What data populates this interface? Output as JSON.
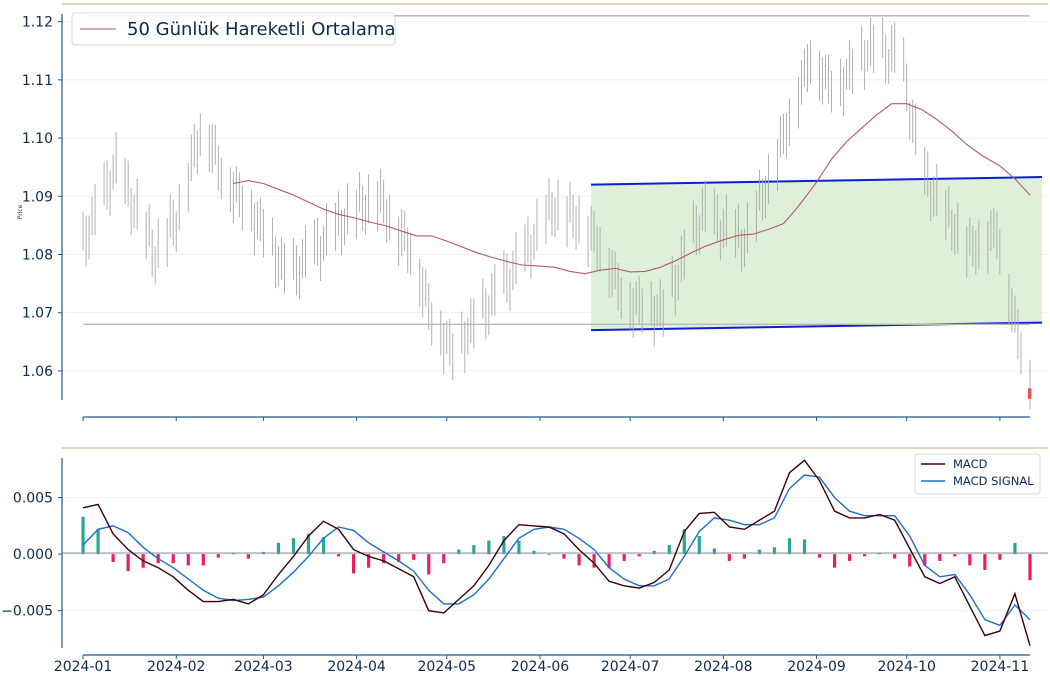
{
  "chart_data": [
    {
      "type": "candlestick",
      "ylabel": "Price",
      "ylim": [
        1.055,
        1.122
      ],
      "yticks": [
        1.06,
        1.07,
        1.08,
        1.09,
        1.1,
        1.11,
        1.12
      ],
      "ytick_labels": [
        "1.06",
        "1.07",
        "1.08",
        "1.09",
        "1.10",
        "1.11",
        "1.12"
      ],
      "xlim": [
        "2023-12-25",
        "2024-11-17"
      ],
      "legend": {
        "location": "top-left",
        "entries": [
          "50 Günlük Hareketli Ortalama"
        ]
      },
      "series": [
        {
          "name": "50 Günlük Hareketli Ortalama",
          "color": "#b05a6e",
          "x": [
            "2024-02-20",
            "2024-02-25",
            "2024-03-01",
            "2024-03-06",
            "2024-03-11",
            "2024-03-16",
            "2024-03-21",
            "2024-03-26",
            "2024-04-01",
            "2024-04-06",
            "2024-04-11",
            "2024-04-16",
            "2024-04-21",
            "2024-04-26",
            "2024-05-01",
            "2024-05-06",
            "2024-05-11",
            "2024-05-16",
            "2024-05-21",
            "2024-05-26",
            "2024-06-01",
            "2024-06-06",
            "2024-06-11",
            "2024-06-16",
            "2024-06-21",
            "2024-06-26",
            "2024-07-01",
            "2024-07-06",
            "2024-07-11",
            "2024-07-16",
            "2024-07-21",
            "2024-07-26",
            "2024-08-01",
            "2024-08-06",
            "2024-08-11",
            "2024-08-16",
            "2024-08-21",
            "2024-08-26",
            "2024-09-01",
            "2024-09-06",
            "2024-09-11",
            "2024-09-16",
            "2024-09-21",
            "2024-09-26",
            "2024-10-01",
            "2024-10-06",
            "2024-10-11",
            "2024-10-16",
            "2024-10-21",
            "2024-10-26",
            "2024-11-01",
            "2024-11-06",
            "2024-11-11"
          ],
          "values": [
            1.0922,
            1.0927,
            1.0922,
            1.0912,
            1.0902,
            1.089,
            1.0878,
            1.0869,
            1.0862,
            1.0855,
            1.0849,
            1.084,
            1.0832,
            1.0832,
            1.0823,
            1.0813,
            1.0803,
            1.0795,
            1.0788,
            1.0782,
            1.078,
            1.0778,
            1.0771,
            1.0767,
            1.0773,
            1.0776,
            1.077,
            1.0771,
            1.0778,
            1.0789,
            1.0802,
            1.0814,
            1.0825,
            1.0833,
            1.0835,
            1.0843,
            1.0853,
            1.0883,
            1.0924,
            1.0964,
            1.0994,
            1.1017,
            1.104,
            1.1059,
            1.1059,
            1.1049,
            1.1032,
            1.1012,
            1.0989,
            1.097,
            1.0952,
            1.093,
            1.0902
          ]
        }
      ],
      "lines": [
        {
          "x": [
            "2024-01-01",
            "2024-11-11"
          ],
          "y": [
            1.121,
            1.121
          ]
        },
        {
          "x": [
            "2024-01-01",
            "2024-11-11"
          ],
          "y": [
            1.068,
            1.068
          ]
        }
      ],
      "channel": {
        "fill": "#d6eccf",
        "upper": {
          "x": [
            "2024-06-18",
            "2024-11-15"
          ],
          "y": [
            1.092,
            1.0933
          ]
        },
        "lower": {
          "x": [
            "2024-06-18",
            "2024-11-15"
          ],
          "y": [
            1.067,
            1.0683
          ]
        }
      }
    },
    {
      "type": "line",
      "ylim": [
        -0.0083,
        0.0085
      ],
      "yticks": [
        -0.005,
        0.0,
        0.005
      ],
      "ytick_labels": [
        "−0.005",
        "0.000",
        "0.005"
      ],
      "xlim": [
        "2023-12-25",
        "2024-11-17"
      ],
      "xtick_labels": [
        "2024-01",
        "2024-02",
        "2024-03",
        "2024-04",
        "2024-05",
        "2024-06",
        "2024-07",
        "2024-08",
        "2024-09",
        "2024-10",
        "2024-11"
      ],
      "xticks": [
        "2024-01-01",
        "2024-02-01",
        "2024-03-01",
        "2024-04-01",
        "2024-05-01",
        "2024-06-01",
        "2024-07-01",
        "2024-08-01",
        "2024-09-01",
        "2024-10-01",
        "2024-11-01"
      ],
      "legend": {
        "location": "top-right",
        "entries": [
          "MACD",
          "MACD SIGNAL"
        ]
      },
      "series": [
        {
          "name": "MACD",
          "color": "#3d0008",
          "x": [
            "2024-01-01",
            "2024-01-06",
            "2024-01-11",
            "2024-01-16",
            "2024-01-21",
            "2024-01-26",
            "2024-01-31",
            "2024-02-05",
            "2024-02-10",
            "2024-02-15",
            "2024-02-20",
            "2024-02-25",
            "2024-03-01",
            "2024-03-06",
            "2024-03-11",
            "2024-03-16",
            "2024-03-21",
            "2024-03-26",
            "2024-03-31",
            "2024-04-05",
            "2024-04-10",
            "2024-04-15",
            "2024-04-20",
            "2024-04-25",
            "2024-04-30",
            "2024-05-05",
            "2024-05-10",
            "2024-05-15",
            "2024-05-20",
            "2024-05-25",
            "2024-05-30",
            "2024-06-04",
            "2024-06-09",
            "2024-06-14",
            "2024-06-19",
            "2024-06-24",
            "2024-06-29",
            "2024-07-04",
            "2024-07-09",
            "2024-07-14",
            "2024-07-19",
            "2024-07-24",
            "2024-07-29",
            "2024-08-03",
            "2024-08-08",
            "2024-08-13",
            "2024-08-18",
            "2024-08-23",
            "2024-08-28",
            "2024-09-02",
            "2024-09-07",
            "2024-09-12",
            "2024-09-17",
            "2024-09-22",
            "2024-09-27",
            "2024-10-02",
            "2024-10-07",
            "2024-10-12",
            "2024-10-17",
            "2024-10-22",
            "2024-10-27",
            "2024-11-01",
            "2024-11-06",
            "2024-11-11"
          ],
          "values": [
            0.0041,
            0.0044,
            0.0018,
            0.0004,
            -0.0006,
            -0.0012,
            -0.002,
            -0.0032,
            -0.0042,
            -0.0042,
            -0.004,
            -0.0044,
            -0.0036,
            -0.0018,
            -0.0002,
            0.0016,
            0.0029,
            0.0022,
            0.0004,
            -0.0002,
            -0.0006,
            -0.0013,
            -0.002,
            -0.005,
            -0.0052,
            -0.004,
            -0.0028,
            -0.001,
            0.0012,
            0.0026,
            0.0025,
            0.0024,
            0.0018,
            0.0004,
            -0.0008,
            -0.0024,
            -0.0028,
            -0.003,
            -0.0025,
            -0.0014,
            0.002,
            0.0036,
            0.0037,
            0.0024,
            0.0022,
            0.003,
            0.0038,
            0.0072,
            0.0083,
            0.0065,
            0.0038,
            0.0032,
            0.0032,
            0.0035,
            0.003,
            0.0005,
            -0.002,
            -0.0026,
            -0.002,
            -0.0046,
            -0.0072,
            -0.0068,
            -0.0035,
            -0.0081
          ]
        },
        {
          "name": "MACD SIGNAL",
          "color": "#1f6ec8",
          "x": [
            "2024-01-01",
            "2024-01-06",
            "2024-01-11",
            "2024-01-16",
            "2024-01-21",
            "2024-01-26",
            "2024-01-31",
            "2024-02-05",
            "2024-02-10",
            "2024-02-15",
            "2024-02-20",
            "2024-02-25",
            "2024-03-01",
            "2024-03-06",
            "2024-03-11",
            "2024-03-16",
            "2024-03-21",
            "2024-03-26",
            "2024-03-31",
            "2024-04-05",
            "2024-04-10",
            "2024-04-15",
            "2024-04-20",
            "2024-04-25",
            "2024-04-30",
            "2024-05-05",
            "2024-05-10",
            "2024-05-15",
            "2024-05-20",
            "2024-05-25",
            "2024-05-30",
            "2024-06-04",
            "2024-06-09",
            "2024-06-14",
            "2024-06-19",
            "2024-06-24",
            "2024-06-29",
            "2024-07-04",
            "2024-07-09",
            "2024-07-14",
            "2024-07-19",
            "2024-07-24",
            "2024-07-29",
            "2024-08-03",
            "2024-08-08",
            "2024-08-13",
            "2024-08-18",
            "2024-08-23",
            "2024-08-28",
            "2024-09-02",
            "2024-09-07",
            "2024-09-12",
            "2024-09-17",
            "2024-09-22",
            "2024-09-27",
            "2024-10-02",
            "2024-10-07",
            "2024-10-12",
            "2024-10-17",
            "2024-10-22",
            "2024-10-27",
            "2024-11-01",
            "2024-11-06",
            "2024-11-11"
          ],
          "values": [
            0.0008,
            0.0022,
            0.0025,
            0.0019,
            0.0006,
            -0.0004,
            -0.0012,
            -0.0022,
            -0.0032,
            -0.0039,
            -0.0041,
            -0.004,
            -0.0038,
            -0.0028,
            -0.0016,
            -0.0002,
            0.0014,
            0.0024,
            0.0021,
            0.001,
            0.0002,
            -0.0006,
            -0.0015,
            -0.0032,
            -0.0044,
            -0.0044,
            -0.0036,
            -0.0022,
            -0.0004,
            0.0014,
            0.0022,
            0.0024,
            0.0022,
            0.0014,
            0.0004,
            -0.0012,
            -0.0022,
            -0.0028,
            -0.0028,
            -0.0022,
            -0.0002,
            0.002,
            0.0032,
            0.003,
            0.0026,
            0.0026,
            0.0032,
            0.0058,
            0.007,
            0.0068,
            0.005,
            0.0038,
            0.0034,
            0.0034,
            0.0034,
            0.0016,
            -0.001,
            -0.002,
            -0.0018,
            -0.0036,
            -0.0058,
            -0.0063,
            -0.0045,
            -0.0058
          ]
        }
      ],
      "histogram": {
        "positive_color": "#26a69a",
        "negative_color": "#e91e63"
      }
    }
  ]
}
